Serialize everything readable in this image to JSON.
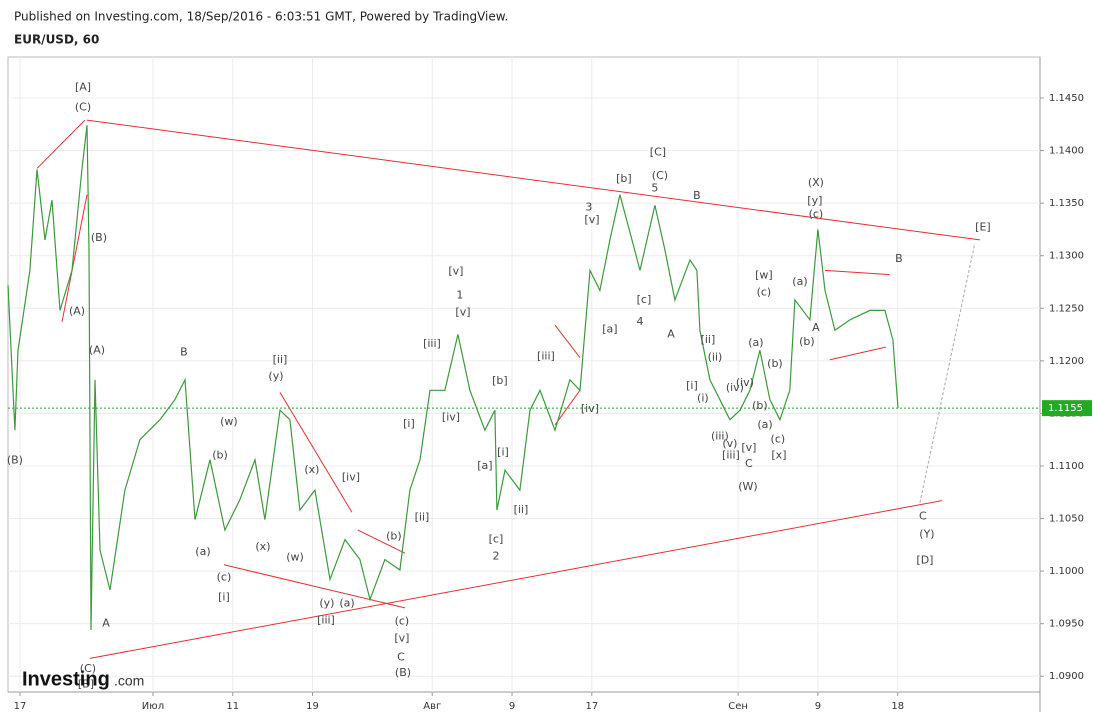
{
  "header": {
    "published": "Published on Investing.com, 18/Sep/2016 - 6:03:51 GMT, Powered by TradingView.",
    "symbol": "EUR/USD, 60"
  },
  "logo": {
    "main": "Investing",
    "suffix": ".com"
  },
  "chart_data": {
    "type": "line",
    "color": "#3c9a3c",
    "grid": true,
    "xlim": [
      -0.9,
      76.7
    ],
    "ylim": [
      1.0885,
      1.1489
    ],
    "xticks": [
      {
        "value": 0,
        "label": "17"
      },
      {
        "value": 10,
        "label": "Июл"
      },
      {
        "value": 16,
        "label": "11"
      },
      {
        "value": 22,
        "label": "19"
      },
      {
        "value": 31,
        "label": "Авг"
      },
      {
        "value": 37,
        "label": "9"
      },
      {
        "value": 43,
        "label": "17"
      },
      {
        "value": 54,
        "label": "Сен"
      },
      {
        "value": 60,
        "label": "9"
      },
      {
        "value": 66,
        "label": "18"
      }
    ],
    "yticks": [
      {
        "value": 1.09,
        "label": "1.0900"
      },
      {
        "value": 1.095,
        "label": "1.0950"
      },
      {
        "value": 1.1,
        "label": "1.1000"
      },
      {
        "value": 1.105,
        "label": "1.1050"
      },
      {
        "value": 1.11,
        "label": "1.1100"
      },
      {
        "value": 1.115,
        "label": "1.1150"
      },
      {
        "value": 1.12,
        "label": "1.1200"
      },
      {
        "value": 1.125,
        "label": "1.1250"
      },
      {
        "value": 1.13,
        "label": "1.1300"
      },
      {
        "value": 1.135,
        "label": "1.1350"
      },
      {
        "value": 1.14,
        "label": "1.1400"
      },
      {
        "value": 1.145,
        "label": "1.1450"
      }
    ],
    "last_price": 1.1155,
    "last_price_color": "#22aa22",
    "x": [
      -0.9,
      -0.38,
      -0.15,
      0.75,
      1.28,
      1.88,
      2.41,
      3.01,
      3.91,
      4.66,
      5.04,
      5.19,
      5.34,
      5.64,
      6.02,
      6.77,
      7.89,
      9.02,
      10.53,
      11.65,
      12.41,
      13.16,
      14.29,
      15.41,
      16.54,
      17.67,
      18.42,
      19.55,
      20.3,
      21.05,
      22.18,
      23.31,
      24.44,
      25.56,
      26.32,
      27.44,
      28.57,
      29.32,
      30.08,
      30.83,
      31.95,
      32.93,
      33.83,
      34.96,
      35.71,
      35.86,
      36.47,
      37.59,
      38.35,
      39.1,
      40.23,
      41.35,
      42.11,
      42.86,
      43.61,
      44.36,
      45.11,
      46.02,
      46.62,
      47.74,
      48.5,
      49.25,
      50.38,
      50.9,
      51.13,
      51.88,
      52.63,
      53.38,
      54.14,
      54.89,
      55.64,
      56.39,
      57.14,
      57.89,
      58.27,
      59.4,
      60.0,
      60.53,
      61.28,
      62.41,
      63.91,
      65.04,
      65.64,
      66.02
    ],
    "values": [
      1.1272,
      1.1134,
      1.121,
      1.1286,
      1.1382,
      1.1315,
      1.1353,
      1.1248,
      1.1286,
      1.1382,
      1.1424,
      1.1305,
      1.0944,
      1.1182,
      1.102,
      1.0982,
      1.1077,
      1.1125,
      1.1144,
      1.1163,
      1.1182,
      1.1049,
      1.1106,
      1.1039,
      1.1068,
      1.1106,
      1.1049,
      1.1153,
      1.1144,
      1.1058,
      1.1077,
      1.0992,
      1.103,
      1.1011,
      1.0973,
      1.1011,
      1.1001,
      1.1077,
      1.1106,
      1.1172,
      1.1172,
      1.1225,
      1.1172,
      1.1134,
      1.1153,
      1.1058,
      1.1096,
      1.1077,
      1.1153,
      1.1172,
      1.1134,
      1.1182,
      1.1172,
      1.1286,
      1.1267,
      1.1315,
      1.1358,
      1.1315,
      1.1286,
      1.1348,
      1.1305,
      1.1258,
      1.1296,
      1.1286,
      1.1229,
      1.1182,
      1.1163,
      1.1144,
      1.1153,
      1.1172,
      1.121,
      1.1163,
      1.1144,
      1.1172,
      1.1258,
      1.1239,
      1.1325,
      1.1267,
      1.1229,
      1.1239,
      1.1248,
      1.1248,
      1.122,
      1.1155
    ],
    "trendlines": [
      {
        "x": [
          5.04,
          72.18
        ],
        "y": [
          1.1429,
          1.1315
        ],
        "color": "#e53030"
      },
      {
        "x": [
          5.26,
          69.32
        ],
        "y": [
          1.0917,
          1.1067
        ],
        "color": "#e53030"
      },
      {
        "x": [
          67.67,
          71.8
        ],
        "y": [
          1.1065,
          1.1312
        ],
        "color": "#aaaaaa",
        "dashed": true
      },
      {
        "x": [
          1.28,
          4.89
        ],
        "y": [
          1.1383,
          1.1429
        ],
        "color": "#e53030"
      },
      {
        "x": [
          3.16,
          5.04
        ],
        "y": [
          1.1237,
          1.1358
        ],
        "color": "#e53030"
      },
      {
        "x": [
          60.53,
          65.41
        ],
        "y": [
          1.1286,
          1.1282
        ],
        "color": "#e53030"
      },
      {
        "x": [
          60.9,
          65.11
        ],
        "y": [
          1.1201,
          1.1213
        ],
        "color": "#e53030"
      },
      {
        "x": [
          19.55,
          24.96
        ],
        "y": [
          1.117,
          1.1056
        ],
        "color": "#e53030"
      },
      {
        "x": [
          15.34,
          28.95
        ],
        "y": [
          1.1006,
          1.0965
        ],
        "color": "#e53030"
      },
      {
        "x": [
          40.23,
          42.11
        ],
        "y": [
          1.1234,
          1.1203
        ],
        "color": "#e53030"
      },
      {
        "x": [
          40.23,
          42.11
        ],
        "y": [
          1.1139,
          1.1172
        ],
        "color": "#e53030"
      },
      {
        "x": [
          25.41,
          28.95
        ],
        "y": [
          1.1039,
          1.1017
        ],
        "color": "#e53030"
      }
    ],
    "annotations": [
      {
        "text": "[A]",
        "x": 4.74,
        "y": 1.146
      },
      {
        "text": "(C)",
        "x": 4.74,
        "y": 1.1441
      },
      {
        "text": "(B)",
        "x": 5.94,
        "y": 1.1317
      },
      {
        "text": "(A)",
        "x": 4.29,
        "y": 1.1247
      },
      {
        "text": "(A)",
        "x": 5.79,
        "y": 1.121
      },
      {
        "text": "(B)",
        "x": -0.38,
        "y": 1.1105
      },
      {
        "text": "A",
        "x": 6.47,
        "y": 1.095
      },
      {
        "text": "(C)",
        "x": 5.11,
        "y": 1.0907
      },
      {
        "text": "[B]",
        "x": 4.96,
        "y": 1.0892
      },
      {
        "text": "B",
        "x": 12.33,
        "y": 1.1208
      },
      {
        "text": "(w)",
        "x": 15.71,
        "y": 1.1142
      },
      {
        "text": "(b)",
        "x": 15.04,
        "y": 1.111
      },
      {
        "text": "(a)",
        "x": 13.76,
        "y": 1.1018
      },
      {
        "text": "(c)",
        "x": 15.34,
        "y": 1.0994
      },
      {
        "text": "[i]",
        "x": 15.34,
        "y": 1.0975
      },
      {
        "text": "(x)",
        "x": 18.27,
        "y": 1.1023
      },
      {
        "text": "[ii]",
        "x": 19.55,
        "y": 1.1201
      },
      {
        "text": "(y)",
        "x": 19.25,
        "y": 1.1185
      },
      {
        "text": "(x)",
        "x": 21.95,
        "y": 1.1096
      },
      {
        "text": "(w)",
        "x": 20.68,
        "y": 1.1013
      },
      {
        "text": "[iv]",
        "x": 24.89,
        "y": 1.1089
      },
      {
        "text": "(y)",
        "x": 23.08,
        "y": 1.0969
      },
      {
        "text": "(a)",
        "x": 24.59,
        "y": 1.0969
      },
      {
        "text": "[iii]",
        "x": 23.01,
        "y": 1.0953
      },
      {
        "text": "(b)",
        "x": 28.12,
        "y": 1.1033
      },
      {
        "text": "(c)",
        "x": 28.72,
        "y": 1.0952
      },
      {
        "text": "[v]",
        "x": 28.72,
        "y": 1.0936
      },
      {
        "text": "C",
        "x": 28.65,
        "y": 1.0918
      },
      {
        "text": "(B)",
        "x": 28.8,
        "y": 1.0903
      },
      {
        "text": "[i]",
        "x": 29.25,
        "y": 1.114
      },
      {
        "text": "[ii]",
        "x": 30.23,
        "y": 1.1051
      },
      {
        "text": "[iii]",
        "x": 30.98,
        "y": 1.1216
      },
      {
        "text": "[iv]",
        "x": 32.41,
        "y": 1.1146
      },
      {
        "text": "[v]",
        "x": 32.78,
        "y": 1.1285
      },
      {
        "text": "1",
        "x": 33.08,
        "y": 1.1262
      },
      {
        "text": "[v]",
        "x": 33.31,
        "y": 1.1246
      },
      {
        "text": "[b]",
        "x": 36.09,
        "y": 1.1181
      },
      {
        "text": "[i]",
        "x": 36.32,
        "y": 1.1113
      },
      {
        "text": "[a]",
        "x": 34.96,
        "y": 1.11
      },
      {
        "text": "[ii]",
        "x": 37.67,
        "y": 1.1058
      },
      {
        "text": "[c]",
        "x": 35.79,
        "y": 1.103
      },
      {
        "text": "2",
        "x": 35.79,
        "y": 1.1014
      },
      {
        "text": "[iii]",
        "x": 39.55,
        "y": 1.1204
      },
      {
        "text": "[iv]",
        "x": 42.86,
        "y": 1.1154
      },
      {
        "text": "3",
        "x": 42.78,
        "y": 1.1346
      },
      {
        "text": "[v]",
        "x": 43.01,
        "y": 1.1334
      },
      {
        "text": "[a]",
        "x": 44.36,
        "y": 1.123
      },
      {
        "text": "[b]",
        "x": 45.41,
        "y": 1.1373
      },
      {
        "text": "[C]",
        "x": 47.97,
        "y": 1.1398
      },
      {
        "text": "(C)",
        "x": 48.12,
        "y": 1.1376
      },
      {
        "text": "5",
        "x": 47.74,
        "y": 1.1364
      },
      {
        "text": "[c]",
        "x": 46.92,
        "y": 1.1258
      },
      {
        "text": "4",
        "x": 46.62,
        "y": 1.1237
      },
      {
        "text": "A",
        "x": 48.95,
        "y": 1.1225
      },
      {
        "text": "B",
        "x": 50.9,
        "y": 1.1357
      },
      {
        "text": "[ii]",
        "x": 51.73,
        "y": 1.122
      },
      {
        "text": "(ii)",
        "x": 52.26,
        "y": 1.1203
      },
      {
        "text": "[i]",
        "x": 50.53,
        "y": 1.1176
      },
      {
        "text": "(i)",
        "x": 51.35,
        "y": 1.1164
      },
      {
        "text": "(iv)",
        "x": 53.76,
        "y": 1.1174
      },
      {
        "text": "(iii)",
        "x": 52.63,
        "y": 1.1128
      },
      {
        "text": "(v)",
        "x": 53.38,
        "y": 1.1121
      },
      {
        "text": "[iii]",
        "x": 53.46,
        "y": 1.111
      },
      {
        "text": "[v]",
        "x": 54.81,
        "y": 1.1117
      },
      {
        "text": "C",
        "x": 54.81,
        "y": 1.1102
      },
      {
        "text": "(W)",
        "x": 54.74,
        "y": 1.108
      },
      {
        "text": "(a)",
        "x": 55.34,
        "y": 1.1217
      },
      {
        "text": "(c)",
        "x": 55.94,
        "y": 1.1265
      },
      {
        "text": "[w]",
        "x": 55.94,
        "y": 1.1281
      },
      {
        "text": "(b)",
        "x": 56.77,
        "y": 1.1197
      },
      {
        "text": "(iv)",
        "x": 54.51,
        "y": 1.1179
      },
      {
        "text": "(b)",
        "x": 55.64,
        "y": 1.1157
      },
      {
        "text": "(a)",
        "x": 56.02,
        "y": 1.1139
      },
      {
        "text": "(c)",
        "x": 56.99,
        "y": 1.1125
      },
      {
        "text": "[x]",
        "x": 57.07,
        "y": 1.111
      },
      {
        "text": "(a)",
        "x": 58.65,
        "y": 1.1275
      },
      {
        "text": "(b)",
        "x": 59.17,
        "y": 1.1218
      },
      {
        "text": "A",
        "x": 59.85,
        "y": 1.1231
      },
      {
        "text": "(X)",
        "x": 59.85,
        "y": 1.1369
      },
      {
        "text": "[y]",
        "x": 59.77,
        "y": 1.1352
      },
      {
        "text": "(c)",
        "x": 59.85,
        "y": 1.1339
      },
      {
        "text": "B",
        "x": 66.09,
        "y": 1.1297
      },
      {
        "text": "[E]",
        "x": 72.41,
        "y": 1.1327
      },
      {
        "text": "C",
        "x": 67.89,
        "y": 1.1052
      },
      {
        "text": "(Y)",
        "x": 68.2,
        "y": 1.1035
      },
      {
        "text": "[D]",
        "x": 68.05,
        "y": 1.101
      }
    ]
  }
}
